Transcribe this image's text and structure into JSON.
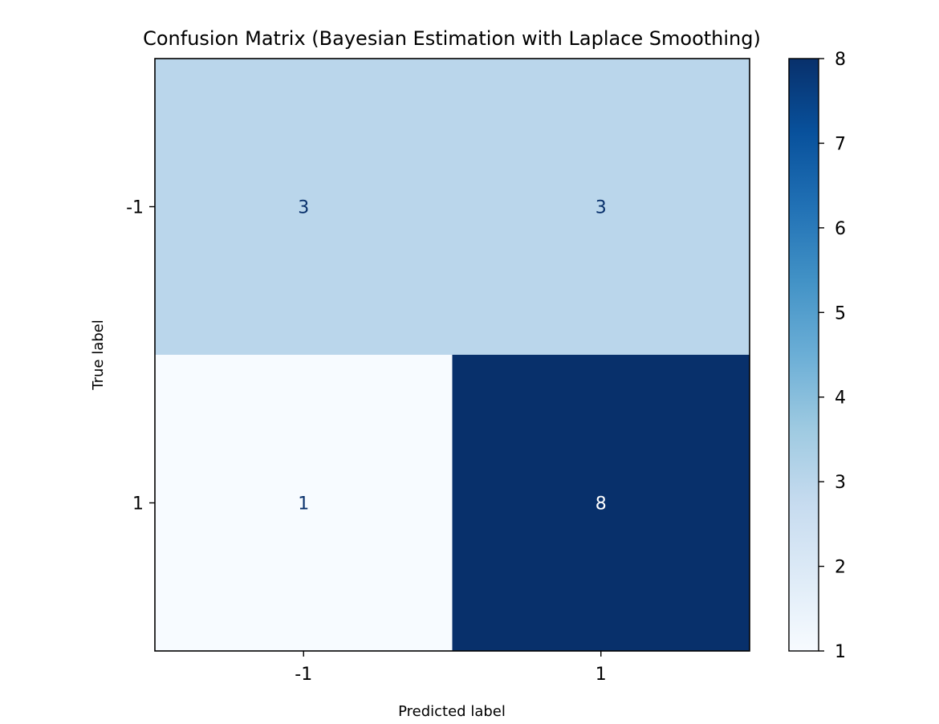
{
  "chart_data": {
    "type": "heatmap",
    "title": "Confusion Matrix (Bayesian Estimation with Laplace Smoothing)",
    "xlabel": "Predicted label",
    "ylabel": "True label",
    "x_categories": [
      "-1",
      "1"
    ],
    "y_categories": [
      "-1",
      "1"
    ],
    "values": [
      [
        3,
        3
      ],
      [
        1,
        8
      ]
    ],
    "colormap": "Blues",
    "colorbar": {
      "vmin": 1,
      "vmax": 8,
      "ticks": [
        1,
        2,
        3,
        4,
        5,
        6,
        7,
        8
      ]
    },
    "cell_colors": {
      "1": "#f7fbff",
      "3": "#bad6eb",
      "8": "#08306b"
    },
    "text_colors": {
      "light_cell": "#08306b",
      "dark_cell": "#ffffff"
    }
  }
}
